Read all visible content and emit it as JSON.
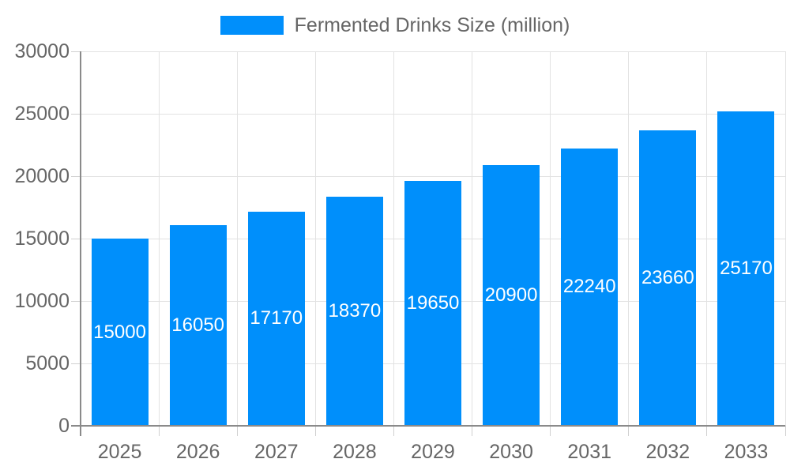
{
  "legend": {
    "label": "Fermented Drinks Size (million)"
  },
  "colors": {
    "bar": "#008FFB",
    "bar_value_text": "#ffffff",
    "grid_line": "#e2e2e2",
    "axis_line": "#8a8a8a",
    "tick_mark": "#d0d0d0",
    "tick_label_text": "#666666",
    "legend_text": "#666666",
    "background": "#ffffff"
  },
  "chart_data": {
    "type": "bar",
    "title": "",
    "categories": [
      "2025",
      "2026",
      "2027",
      "2028",
      "2029",
      "2030",
      "2031",
      "2032",
      "2033"
    ],
    "series": [
      {
        "name": "Fermented Drinks Size (million)",
        "values": [
          15000,
          16050,
          17170,
          18370,
          19650,
          20900,
          22240,
          23660,
          25170
        ]
      }
    ],
    "xlabel": "",
    "ylabel": "",
    "ylim": [
      0,
      30000
    ],
    "ytick_step": 5000,
    "ytick_labels": [
      "0",
      "5000",
      "10000",
      "15000",
      "20000",
      "25000",
      "30000"
    ],
    "grid": true,
    "legend_position": "top-center",
    "value_label_position": "inside-center-vertical"
  }
}
